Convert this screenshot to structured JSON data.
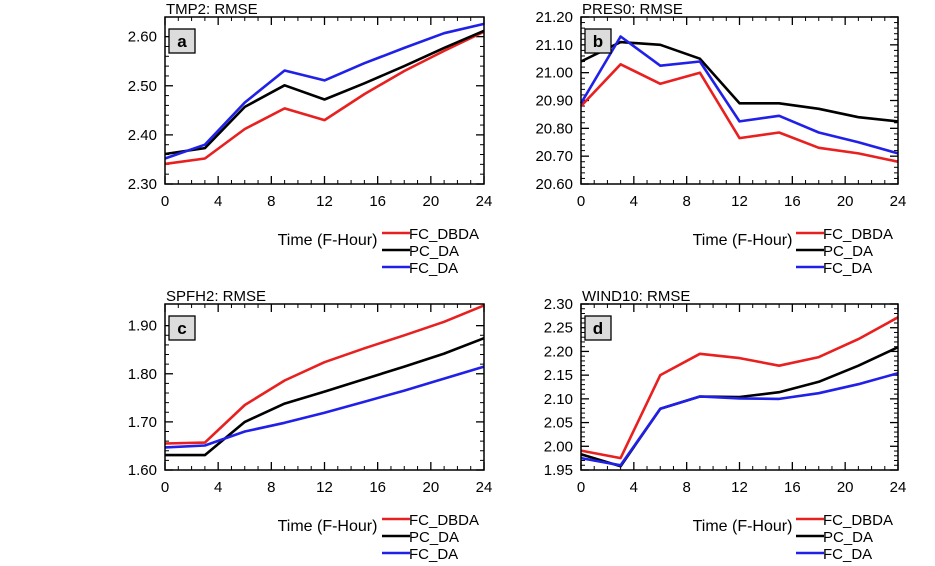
{
  "colors": {
    "FC_DBDA": "#e8201f",
    "PC_DA": "#000000",
    "FC_DA": "#2020e8"
  },
  "chart_data": [
    {
      "type": "line",
      "panel": "a",
      "title": "TMP2: RMSE",
      "xlabel": "Time (F-Hour)",
      "ylabel": "",
      "x": [
        0,
        3,
        6,
        9,
        12,
        15,
        18,
        21,
        24
      ],
      "xticks": [
        0,
        4,
        8,
        12,
        16,
        20,
        24
      ],
      "xlim": [
        0,
        24
      ],
      "ylim": [
        2.3,
        2.64
      ],
      "yticks": [
        "2.30",
        "2.40",
        "2.50",
        "2.60"
      ],
      "legend_position": "below-right",
      "series": [
        {
          "name": "FC_DBDA",
          "values": [
            2.341,
            2.352,
            2.412,
            2.454,
            2.43,
            2.483,
            2.53,
            2.571,
            2.61
          ]
        },
        {
          "name": "PC_DA",
          "values": [
            2.361,
            2.373,
            2.457,
            2.501,
            2.472,
            2.505,
            2.54,
            2.577,
            2.612
          ]
        },
        {
          "name": "FC_DA",
          "values": [
            2.352,
            2.38,
            2.466,
            2.531,
            2.511,
            2.546,
            2.577,
            2.607,
            2.626
          ]
        }
      ]
    },
    {
      "type": "line",
      "panel": "b",
      "title": "PRES0: RMSE",
      "xlabel": "Time (F-Hour)",
      "ylabel": "",
      "x": [
        0,
        3,
        6,
        9,
        12,
        15,
        18,
        21,
        24
      ],
      "xticks": [
        0,
        4,
        8,
        12,
        16,
        20,
        24
      ],
      "xlim": [
        0,
        24
      ],
      "ylim": [
        20.6,
        21.2
      ],
      "yticks": [
        "20.60",
        "20.70",
        "20.80",
        "20.90",
        "21.00",
        "21.10",
        "21.20"
      ],
      "legend_position": "below-right",
      "series": [
        {
          "name": "FC_DBDA",
          "values": [
            20.88,
            21.03,
            20.96,
            21.0,
            20.765,
            20.785,
            20.73,
            20.71,
            20.68
          ]
        },
        {
          "name": "PC_DA",
          "values": [
            21.04,
            21.11,
            21.1,
            21.05,
            20.89,
            20.89,
            20.87,
            20.84,
            20.825
          ]
        },
        {
          "name": "FC_DA",
          "values": [
            20.89,
            21.13,
            21.025,
            21.04,
            20.825,
            20.845,
            20.785,
            20.75,
            20.71
          ]
        }
      ]
    },
    {
      "type": "line",
      "panel": "c",
      "title": "SPFH2: RMSE",
      "xlabel": "Time (F-Hour)",
      "ylabel": "",
      "x": [
        0,
        3,
        6,
        9,
        12,
        15,
        18,
        21,
        24
      ],
      "xticks": [
        0,
        4,
        8,
        12,
        16,
        20,
        24
      ],
      "xlim": [
        0,
        24
      ],
      "ylim": [
        1.6,
        1.945
      ],
      "yticks": [
        "1.60",
        "1.70",
        "1.80",
        "1.90"
      ],
      "legend_position": "below-right",
      "series": [
        {
          "name": "FC_DBDA",
          "values": [
            1.655,
            1.657,
            1.735,
            1.786,
            1.824,
            1.853,
            1.88,
            1.908,
            1.942
          ]
        },
        {
          "name": "PC_DA",
          "values": [
            1.631,
            1.631,
            1.7,
            1.738,
            1.763,
            1.789,
            1.815,
            1.842,
            1.874
          ]
        },
        {
          "name": "FC_DA",
          "values": [
            1.647,
            1.651,
            1.68,
            1.698,
            1.719,
            1.742,
            1.765,
            1.79,
            1.815
          ]
        }
      ]
    },
    {
      "type": "line",
      "panel": "d",
      "title": "WIND10: RMSE",
      "xlabel": "Time (F-Hour)",
      "ylabel": "",
      "x": [
        0,
        3,
        6,
        9,
        12,
        15,
        18,
        21,
        24
      ],
      "xticks": [
        0,
        4,
        8,
        12,
        16,
        20,
        24
      ],
      "xlim": [
        0,
        24
      ],
      "ylim": [
        1.95,
        2.3
      ],
      "yticks": [
        "1.95",
        "2.00",
        "2.05",
        "2.10",
        "2.15",
        "2.20",
        "2.25",
        "2.30"
      ],
      "legend_position": "below-right",
      "series": [
        {
          "name": "FC_DBDA",
          "values": [
            1.991,
            1.975,
            2.15,
            2.195,
            2.186,
            2.17,
            2.188,
            2.226,
            2.272
          ]
        },
        {
          "name": "PC_DA",
          "values": [
            1.983,
            1.958,
            2.079,
            2.105,
            2.104,
            2.114,
            2.136,
            2.17,
            2.209
          ]
        },
        {
          "name": "FC_DA",
          "values": [
            1.975,
            1.96,
            2.079,
            2.105,
            2.101,
            2.1,
            2.112,
            2.131,
            2.154
          ]
        }
      ]
    }
  ]
}
